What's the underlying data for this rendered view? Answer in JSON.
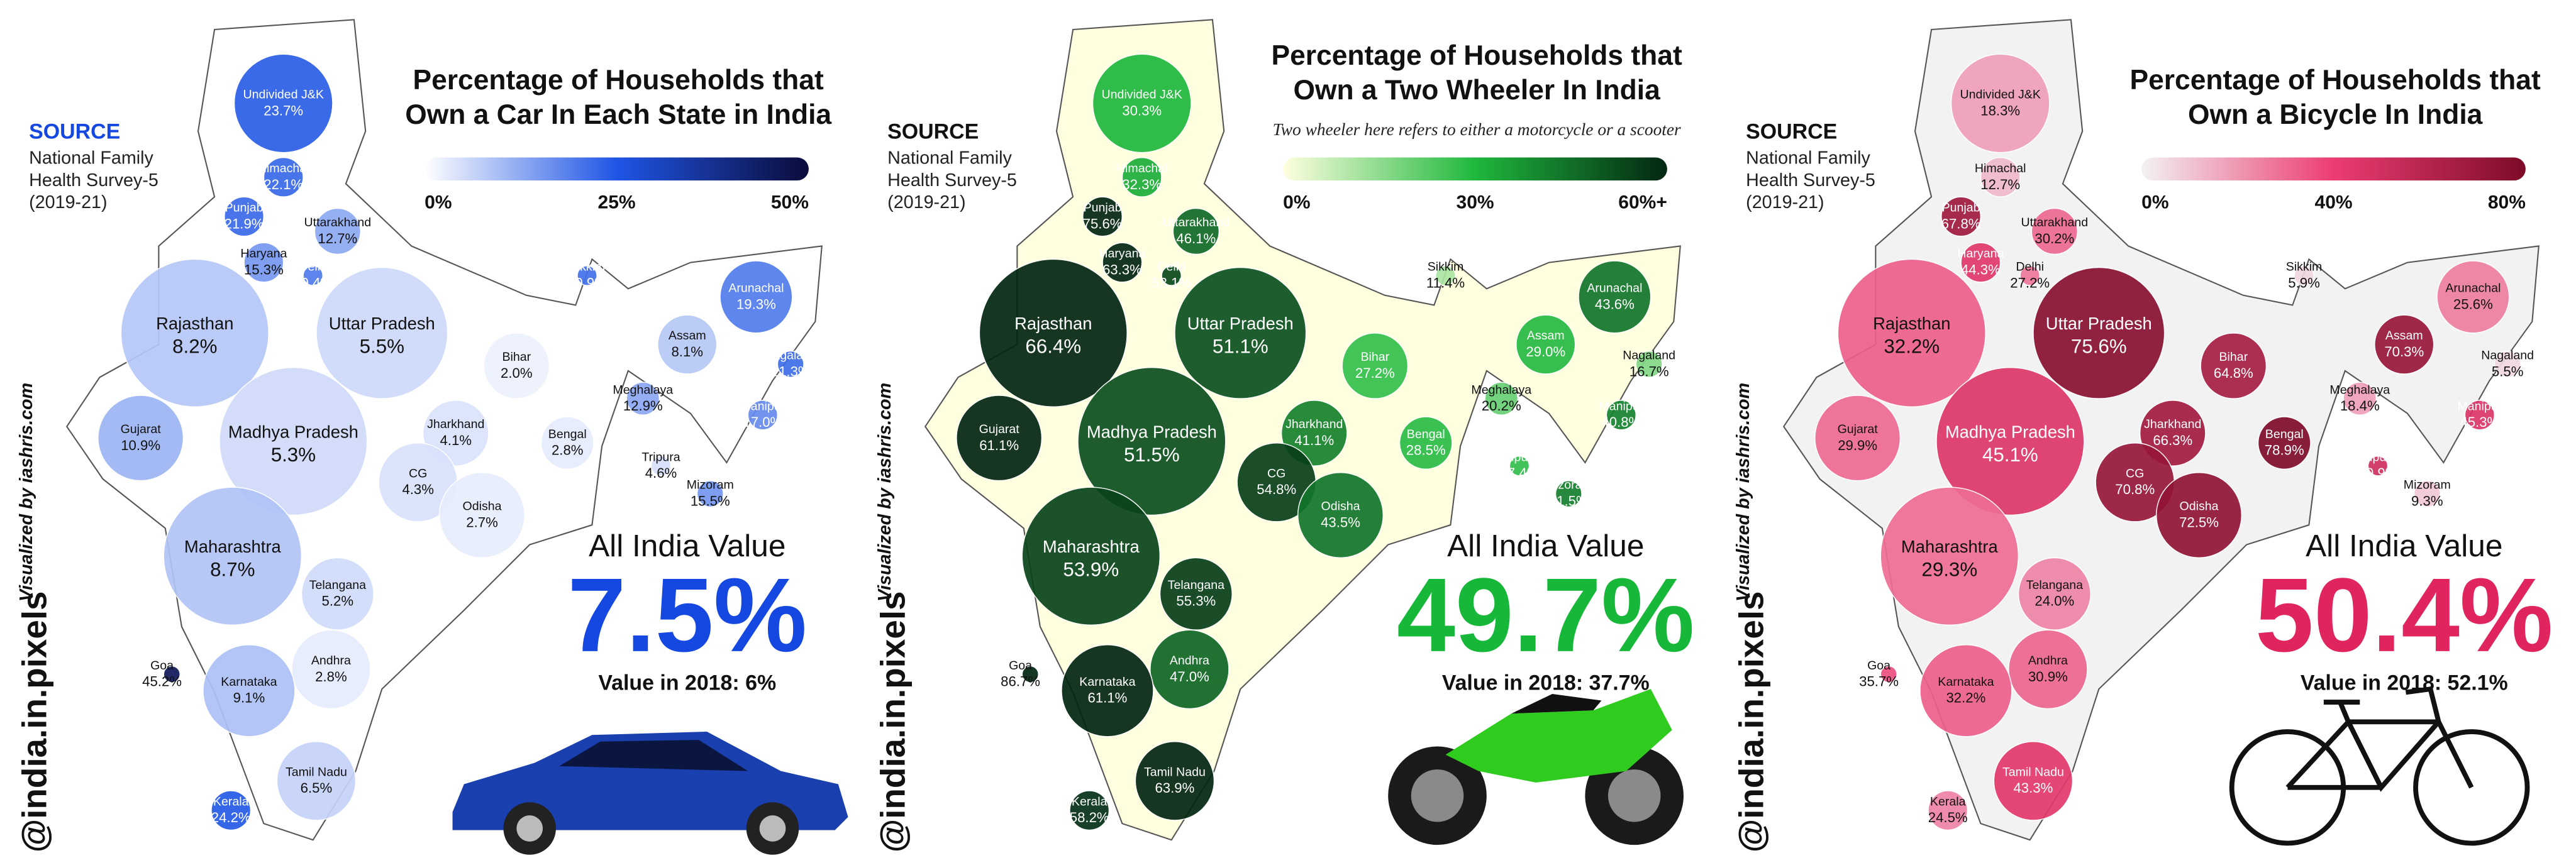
{
  "states": [
    "Undivided J&K",
    "Himachal",
    "Punjab",
    "Uttarakhand",
    "Haryana",
    "Delhi",
    "Rajasthan",
    "Uttar Pradesh",
    "Bihar",
    "Sikkim",
    "Arunachal",
    "Assam",
    "Nagaland",
    "Meghalaya",
    "Manipur",
    "Tripura",
    "Mizoram",
    "Gujarat",
    "Madhya Pradesh",
    "Jharkhand",
    "Bengal",
    "CG",
    "Odisha",
    "Maharashtra",
    "Telangana",
    "Andhra",
    "Goa",
    "Karnataka",
    "Tamil Nadu",
    "Kerala"
  ],
  "source": {
    "label": "SOURCE",
    "lines": [
      "National Family",
      "Health Survey-5",
      "(2019-21)"
    ]
  },
  "credit": "Visualized by iashris.com",
  "handle": "@india.in.pixels",
  "all_india_label": "All India Value",
  "panels": [
    {
      "title": [
        "Percentage of Households that",
        "Own a Car In Each State in India"
      ],
      "scale_colors": [
        "#ffffff",
        "#1f55e6",
        "#0b0b3a"
      ],
      "scale_ticks": [
        {
          "value": 0,
          "label": "0%"
        },
        {
          "value": 25,
          "label": "25%"
        },
        {
          "value": 50,
          "label": "50%"
        }
      ],
      "accent": "#1548e0",
      "values": [
        23.7,
        22.1,
        21.9,
        12.7,
        15.3,
        19.4,
        8.2,
        5.5,
        2.0,
        20.9,
        19.3,
        8.1,
        21.3,
        12.9,
        17.0,
        4.6,
        15.5,
        10.9,
        5.3,
        4.1,
        2.8,
        4.3,
        2.7,
        8.7,
        5.2,
        2.8,
        45.2,
        9.1,
        6.5,
        24.2
      ],
      "value_labels": [
        "23.7%",
        "22.1%",
        "21.9%",
        "12.7%",
        "15.3%",
        "19.4%",
        "8.2%",
        "5.5%",
        "2.0%",
        "20.9%",
        "19.3%",
        "8.1%",
        "21.3%",
        "12.9%",
        "17.0%",
        "4.6%",
        "15.5%",
        "10.9%",
        "5.3%",
        "4.1%",
        "2.8%",
        "4.3%",
        "2.7%",
        "8.7%",
        "5.2%",
        "2.8%",
        "45.2%",
        "9.1%",
        "6.5%",
        "24.2%"
      ],
      "all_india": {
        "value": 7.5,
        "label": "7.5%"
      },
      "value_2018": "Value in 2018: 6%"
    },
    {
      "title": [
        "Percentage of Households that",
        "Own a Two Wheeler In India"
      ],
      "subtitle": "Two wheeler here refers to either a motorcycle or a scooter",
      "scale_colors": [
        "#ffffe0",
        "#1fb83d",
        "#032612"
      ],
      "scale_ticks": [
        {
          "value": 0,
          "label": "0%"
        },
        {
          "value": 30,
          "label": "30%"
        },
        {
          "value": 60,
          "label": "60%+"
        }
      ],
      "accent": "#17b83a",
      "values": [
        30.3,
        32.3,
        75.6,
        46.1,
        63.3,
        53.1,
        66.4,
        51.1,
        27.2,
        11.4,
        43.6,
        29.0,
        16.7,
        20.2,
        40.8,
        27.4,
        41.5,
        61.1,
        51.5,
        41.1,
        28.5,
        54.8,
        43.5,
        53.9,
        55.3,
        47.0,
        86.7,
        61.1,
        63.9,
        58.2
      ],
      "value_labels": [
        "30.3%",
        "32.3%",
        "75.6%",
        "46.1%",
        "63.3%",
        "53.1%",
        "66.4%",
        "51.1%",
        "27.2%",
        "11.4%",
        "43.6%",
        "29.0%",
        "16.7%",
        "20.2%",
        "40.8%",
        "27.4%",
        "41.5%",
        "61.1%",
        "51.5%",
        "41.1%",
        "28.5%",
        "54.8%",
        "43.5%",
        "53.9%",
        "55.3%",
        "47.0%",
        "86.7%",
        "61.1%",
        "63.9%",
        "58.2%"
      ],
      "all_india": {
        "value": 49.7,
        "label": "49.7%"
      },
      "value_2018": "Value in 2018: 37.7%"
    },
    {
      "title": [
        "Percentage of Households that",
        "Own a Bicycle In India"
      ],
      "scale_colors": [
        "#f2f2f2",
        "#ec3d72",
        "#7d0b28"
      ],
      "scale_ticks": [
        {
          "value": 0,
          "label": "0%"
        },
        {
          "value": 40,
          "label": "40%"
        },
        {
          "value": 80,
          "label": "80%"
        }
      ],
      "accent": "#e0245e",
      "values": [
        18.3,
        12.7,
        67.8,
        30.2,
        44.3,
        27.2,
        32.2,
        75.6,
        64.8,
        5.9,
        25.6,
        70.3,
        5.5,
        18.4,
        45.3,
        50.9,
        9.3,
        29.9,
        45.1,
        66.3,
        78.9,
        70.8,
        72.5,
        29.3,
        24.0,
        30.9,
        35.7,
        32.2,
        43.3,
        24.5
      ],
      "value_labels": [
        "18.3%",
        "12.7%",
        "67.8%",
        "30.2%",
        "44.3%",
        "27.2%",
        "32.2%",
        "75.6%",
        "64.8%",
        "5.9%",
        "25.6%",
        "70.3%",
        "5.5%",
        "18.4%",
        "45.3%",
        "50.9%",
        "9.3%",
        "29.9%",
        "45.1%",
        "66.3%",
        "78.9%",
        "70.8%",
        "72.5%",
        "29.3%",
        "24.0%",
        "30.9%",
        "35.7%",
        "32.2%",
        "43.3%",
        "24.5%"
      ],
      "all_india": {
        "value": 50.4,
        "label": "50.4%"
      },
      "value_2018": "Value in 2018: 52.1%"
    }
  ]
}
